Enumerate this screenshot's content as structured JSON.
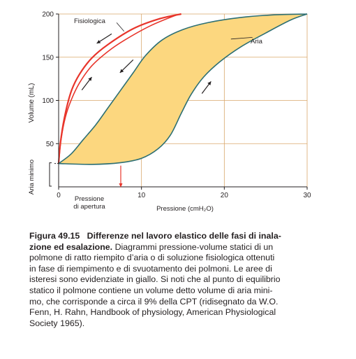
{
  "chart_data": {
    "type": "line",
    "title": "",
    "xlabel": "Pressione (cmH₂O)",
    "ylabel": "Volume (mL)",
    "xlim": [
      0,
      30
    ],
    "ylim": [
      0,
      200
    ],
    "x_ticks": [
      "0",
      "10",
      "20",
      "30"
    ],
    "y_ticks": [
      "50",
      "100",
      "150",
      "200"
    ],
    "grid": true,
    "series": [
      {
        "name": "Fisiologica",
        "color": "#e8352b",
        "inflation": [
          [
            0,
            27
          ],
          [
            0.3,
            55
          ],
          [
            0.8,
            80
          ],
          [
            1.5,
            100
          ],
          [
            2.5,
            120
          ],
          [
            4,
            140
          ],
          [
            6,
            157
          ],
          [
            8,
            170
          ],
          [
            11,
            186
          ],
          [
            14,
            198
          ],
          [
            14.8,
            200
          ]
        ],
        "deflation": [
          [
            14.8,
            200
          ],
          [
            12,
            194
          ],
          [
            9,
            183
          ],
          [
            6,
            165
          ],
          [
            4,
            149
          ],
          [
            2.5,
            130
          ],
          [
            1.5,
            110
          ],
          [
            0.7,
            80
          ],
          [
            0.2,
            50
          ],
          [
            0,
            27
          ]
        ]
      },
      {
        "name": "Aria",
        "color": "#2d6f73",
        "fill": "#fcd77f",
        "inflation": [
          [
            0,
            27
          ],
          [
            4,
            26
          ],
          [
            7.5,
            28
          ],
          [
            10,
            33
          ],
          [
            12,
            44
          ],
          [
            13.5,
            60
          ],
          [
            14.8,
            85
          ],
          [
            16,
            107
          ],
          [
            17.5,
            127
          ],
          [
            19.5,
            145
          ],
          [
            22,
            162
          ],
          [
            25,
            178
          ],
          [
            28,
            193
          ],
          [
            30,
            200
          ]
        ],
        "deflation": [
          [
            30,
            200
          ],
          [
            26,
            199
          ],
          [
            22,
            196
          ],
          [
            18,
            190
          ],
          [
            15,
            182
          ],
          [
            12.5,
            170
          ],
          [
            10.5,
            152
          ],
          [
            9,
            132
          ],
          [
            7.5,
            112
          ],
          [
            6,
            92
          ],
          [
            4.5,
            72
          ],
          [
            3,
            55
          ],
          [
            1.5,
            38
          ],
          [
            0,
            27
          ]
        ]
      }
    ],
    "annotations": [
      {
        "text": "Fisiologica",
        "x": 5.3,
        "y": 193
      },
      {
        "text": "Aria",
        "x": 23.6,
        "y": 170
      },
      {
        "text": "Pressione",
        "x": 3.2,
        "y": -12
      },
      {
        "text": "di apertura",
        "x": 3.2,
        "y": -21
      },
      {
        "text": "Aria minimo",
        "x": -3.6,
        "y": 13
      }
    ],
    "opening_pressure": 7.5,
    "minimal_air": [
      0,
      27
    ]
  },
  "caption": {
    "number": "Figura 49.15",
    "title": "Differenze nel lavoro elastico delle fasi di inalazione ed esalazione.",
    "lines": [
      "Diagrammi pressione-volume statici di un",
      "polmone di ratto riempito d’aria o di soluzione fisiologica ottenuti",
      "in fase di riempimento e di svuotamento dei polmoni. Le aree di",
      "isteresi sono evidenziate in giallo. Si noti che al punto di equilibrio",
      "statico il polmone contiene un volume detto volume di aria mini-",
      "mo, che corrisponde a circa il 9% della CPT (ridisegnato da W.O.",
      "Fenn, H. Rahn, Handbook of physiology, American Physiological",
      "Society 1965)."
    ],
    "first_line_title_a": "Differenze nel lavoro elastico delle fasi di inala-",
    "first_line_title_b": "zione ed esalazione."
  }
}
